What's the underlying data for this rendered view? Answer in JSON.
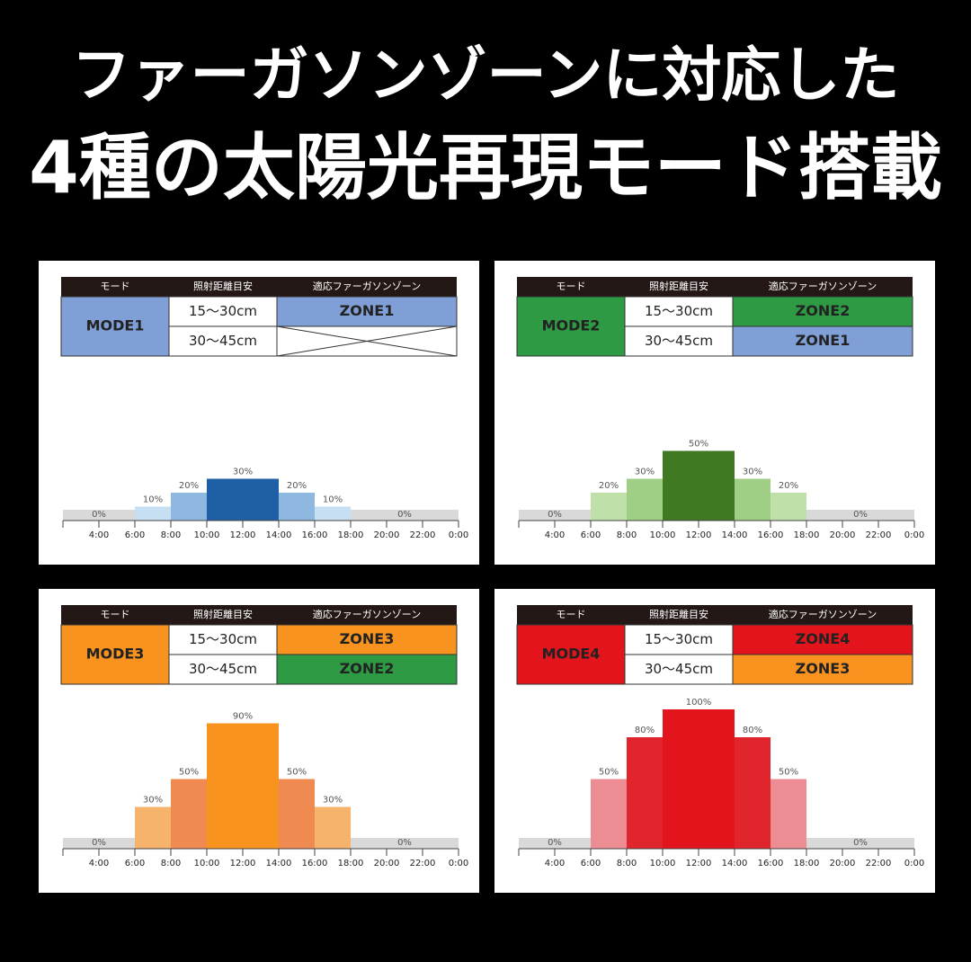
{
  "header": {
    "lines": [
      "ファーガソンゾーンに対応した",
      "4種の太陽光再現モード搭載"
    ]
  },
  "tables": [
    {
      "columns": [
        "モード",
        "照射距離目安",
        "適応ファーガソンゾーン"
      ],
      "mode": "MODE1",
      "mode_color": "#7f9fd6",
      "rows": [
        {
          "distance": "15〜30cm",
          "zone": "ZONE1",
          "color": "#7f9fd6"
        },
        {
          "distance": "30〜45cm",
          "zone": null,
          "color": null
        }
      ]
    },
    {
      "columns": [
        "モード",
        "照射距離目安",
        "適応ファーガソンゾーン"
      ],
      "mode": "MODE2",
      "mode_color": "#2e9a44",
      "rows": [
        {
          "distance": "15〜30cm",
          "zone": "ZONE2",
          "color": "#2e9a44"
        },
        {
          "distance": "30〜45cm",
          "zone": "ZONE1",
          "color": "#7f9fd6"
        }
      ]
    },
    {
      "columns": [
        "モード",
        "照射距離目安",
        "適応ファーガソンゾーン"
      ],
      "mode": "MODE3",
      "mode_color": "#f7931e",
      "rows": [
        {
          "distance": "15〜30cm",
          "zone": "ZONE3",
          "color": "#f7931e"
        },
        {
          "distance": "30〜45cm",
          "zone": "ZONE2",
          "color": "#2e9a44"
        }
      ]
    },
    {
      "columns": [
        "モード",
        "照射距離目安",
        "適応ファーガソンゾーン"
      ],
      "mode": "MODE4",
      "mode_color": "#e3141b",
      "rows": [
        {
          "distance": "15〜30cm",
          "zone": "ZONE4",
          "color": "#e3141b"
        },
        {
          "distance": "30〜45cm",
          "zone": "ZONE3",
          "color": "#f7931e"
        }
      ]
    }
  ],
  "chart_data": [
    {
      "type": "histogram",
      "bins": [
        2,
        6,
        8,
        10,
        14,
        16,
        18,
        24
      ],
      "values": [
        0,
        10,
        20,
        30,
        20,
        10,
        0
      ],
      "value_labels": [
        "0%",
        "10%",
        "20%",
        "30%",
        "20%",
        "10%",
        "0%"
      ],
      "colors": [
        "#d9d9d9",
        "#c7dff2",
        "#8fb8e0",
        "#1f5fa6",
        "#8fb8e0",
        "#c7dff2",
        "#d9d9d9"
      ],
      "xlim": [
        2,
        24
      ],
      "ylim": [
        0,
        100
      ],
      "xticks": [
        {
          "value": 4,
          "label": "4:00"
        },
        {
          "value": 6,
          "label": "6:00"
        },
        {
          "value": 8,
          "label": "8:00"
        },
        {
          "value": 10,
          "label": "10:00"
        },
        {
          "value": 12,
          "label": "12:00"
        },
        {
          "value": 14,
          "label": "14:00"
        },
        {
          "value": 16,
          "label": "16:00"
        },
        {
          "value": 18,
          "label": "18:00"
        },
        {
          "value": 20,
          "label": "20:00"
        },
        {
          "value": 22,
          "label": "22:00"
        },
        {
          "value": 24,
          "label": "0:00"
        }
      ]
    },
    {
      "type": "histogram",
      "bins": [
        2,
        6,
        8,
        10,
        14,
        16,
        18,
        24
      ],
      "values": [
        0,
        20,
        30,
        50,
        30,
        20,
        0
      ],
      "value_labels": [
        "0%",
        "20%",
        "30%",
        "50%",
        "30%",
        "20%",
        "0%"
      ],
      "colors": [
        "#d9d9d9",
        "#bfe0a8",
        "#9fce85",
        "#3f7a22",
        "#9fce85",
        "#bfe0a8",
        "#d9d9d9"
      ],
      "xlim": [
        2,
        24
      ],
      "ylim": [
        0,
        100
      ],
      "xticks": [
        {
          "value": 4,
          "label": "4:00"
        },
        {
          "value": 6,
          "label": "6:00"
        },
        {
          "value": 8,
          "label": "8:00"
        },
        {
          "value": 10,
          "label": "10:00"
        },
        {
          "value": 12,
          "label": "12:00"
        },
        {
          "value": 14,
          "label": "14:00"
        },
        {
          "value": 16,
          "label": "16:00"
        },
        {
          "value": 18,
          "label": "18:00"
        },
        {
          "value": 20,
          "label": "20:00"
        },
        {
          "value": 22,
          "label": "22:00"
        },
        {
          "value": 24,
          "label": "0:00"
        }
      ]
    },
    {
      "type": "histogram",
      "bins": [
        2,
        6,
        8,
        10,
        14,
        16,
        18,
        24
      ],
      "values": [
        0,
        30,
        50,
        90,
        50,
        30,
        0
      ],
      "value_labels": [
        "0%",
        "30%",
        "50%",
        "90%",
        "50%",
        "30%",
        "0%"
      ],
      "colors": [
        "#d9d9d9",
        "#f6b36b",
        "#ef8a50",
        "#f7931e",
        "#ef8a50",
        "#f6b36b",
        "#d9d9d9"
      ],
      "xlim": [
        2,
        24
      ],
      "ylim": [
        0,
        100
      ],
      "xticks": [
        {
          "value": 4,
          "label": "4:00"
        },
        {
          "value": 6,
          "label": "6:00"
        },
        {
          "value": 8,
          "label": "8:00"
        },
        {
          "value": 10,
          "label": "10:00"
        },
        {
          "value": 12,
          "label": "12:00"
        },
        {
          "value": 14,
          "label": "14:00"
        },
        {
          "value": 16,
          "label": "16:00"
        },
        {
          "value": 18,
          "label": "18:00"
        },
        {
          "value": 20,
          "label": "20:00"
        },
        {
          "value": 22,
          "label": "22:00"
        },
        {
          "value": 24,
          "label": "0:00"
        }
      ]
    },
    {
      "type": "histogram",
      "bins": [
        2,
        6,
        8,
        10,
        14,
        16,
        18,
        24
      ],
      "values": [
        0,
        50,
        80,
        100,
        80,
        50,
        0
      ],
      "value_labels": [
        "0%",
        "50%",
        "80%",
        "100%",
        "80%",
        "50%",
        "0%"
      ],
      "colors": [
        "#d9d9d9",
        "#ec8d94",
        "#e0262c",
        "#e3141b",
        "#e0262c",
        "#ec8d94",
        "#d9d9d9"
      ],
      "xlim": [
        2,
        24
      ],
      "ylim": [
        0,
        100
      ],
      "xticks": [
        {
          "value": 4,
          "label": "4:00"
        },
        {
          "value": 6,
          "label": "6:00"
        },
        {
          "value": 8,
          "label": "8:00"
        },
        {
          "value": 10,
          "label": "10:00"
        },
        {
          "value": 12,
          "label": "12:00"
        },
        {
          "value": 14,
          "label": "14:00"
        },
        {
          "value": 16,
          "label": "16:00"
        },
        {
          "value": 18,
          "label": "18:00"
        },
        {
          "value": 20,
          "label": "20:00"
        },
        {
          "value": 22,
          "label": "22:00"
        },
        {
          "value": 24,
          "label": "0:00"
        }
      ]
    }
  ]
}
